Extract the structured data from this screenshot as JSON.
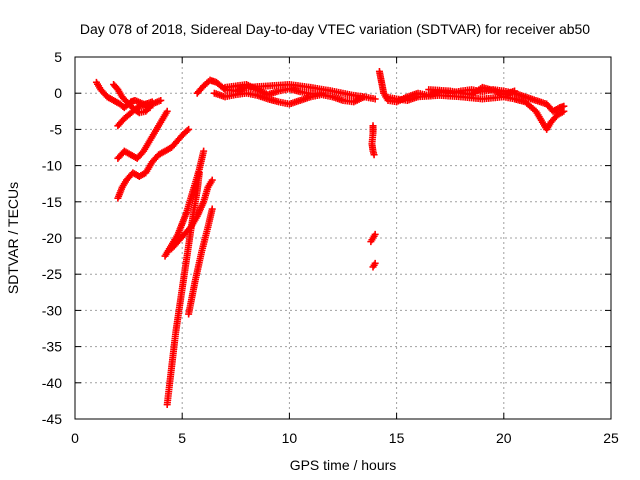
{
  "chart_data": {
    "type": "scatter",
    "title": "Day 078 of 2018, Sidereal Day-to-day VTEC variation (SDTVAR) for receiver ab50",
    "xlabel": "GPS time / hours",
    "ylabel": "SDTVAR / TECUs",
    "xlim": [
      0,
      25
    ],
    "ylim": [
      -45,
      5
    ],
    "xticks": [
      0,
      5,
      10,
      15,
      20,
      25
    ],
    "yticks": [
      5,
      0,
      -5,
      -10,
      -15,
      -20,
      -25,
      -30,
      -35,
      -40,
      -45
    ],
    "xtick_labels": [
      "0",
      "5",
      "10",
      "15",
      "20",
      "25"
    ],
    "ytick_labels": [
      "5",
      "0",
      "-5",
      "-10",
      "-15",
      "-20",
      "-25",
      "-30",
      "-35",
      "-40",
      "-45"
    ],
    "grid": true,
    "marker": "plus",
    "color": "#ff0000",
    "tracks": [
      [
        [
          1.0,
          1.5
        ],
        [
          1.2,
          0.5
        ],
        [
          1.5,
          -0.5
        ],
        [
          1.8,
          -1.0
        ],
        [
          2.1,
          -1.5
        ],
        [
          2.3,
          -2.0
        ],
        [
          2.6,
          -1.2
        ],
        [
          2.8,
          -1.0
        ],
        [
          3.2,
          -1.5
        ],
        [
          3.5,
          -2.0
        ]
      ],
      [
        [
          1.8,
          1.2
        ],
        [
          2.0,
          0.5
        ],
        [
          2.2,
          -0.5
        ],
        [
          2.5,
          -1.5
        ],
        [
          2.8,
          -2.3
        ],
        [
          3.0,
          -2.7
        ],
        [
          3.3,
          -2.5
        ],
        [
          3.6,
          -1.5
        ],
        [
          4.0,
          -1.0
        ]
      ],
      [
        [
          2.0,
          -4.5
        ],
        [
          2.3,
          -3.5
        ],
        [
          2.7,
          -2.5
        ],
        [
          3.0,
          -1.8
        ],
        [
          3.3,
          -1.5
        ],
        [
          3.6,
          -1.2
        ]
      ],
      [
        [
          2.0,
          -9.0
        ],
        [
          2.3,
          -8.0
        ],
        [
          2.6,
          -8.5
        ],
        [
          2.9,
          -9.0
        ],
        [
          3.2,
          -8.0
        ],
        [
          3.5,
          -6.5
        ],
        [
          3.8,
          -5.0
        ],
        [
          4.1,
          -3.5
        ],
        [
          4.3,
          -2.5
        ]
      ],
      [
        [
          2.0,
          -14.5
        ],
        [
          2.2,
          -13.0
        ],
        [
          2.4,
          -12.0
        ],
        [
          2.7,
          -11.0
        ],
        [
          3.0,
          -11.5
        ],
        [
          3.3,
          -11.0
        ],
        [
          3.6,
          -9.5
        ],
        [
          3.9,
          -8.5
        ],
        [
          4.2,
          -8.0
        ],
        [
          4.5,
          -7.5
        ],
        [
          4.8,
          -6.5
        ],
        [
          5.1,
          -5.5
        ],
        [
          5.3,
          -5.0
        ]
      ],
      [
        [
          4.2,
          -22.5
        ],
        [
          4.4,
          -21.5
        ],
        [
          4.6,
          -20.5
        ],
        [
          4.8,
          -19.5
        ],
        [
          5.0,
          -18.0
        ],
        [
          5.2,
          -16.5
        ],
        [
          5.4,
          -14.5
        ],
        [
          5.6,
          -12.5
        ],
        [
          5.8,
          -10.5
        ],
        [
          6.0,
          -8.0
        ]
      ],
      [
        [
          4.5,
          -21.5
        ],
        [
          4.8,
          -20.5
        ],
        [
          5.1,
          -19.5
        ],
        [
          5.4,
          -18.5
        ],
        [
          5.7,
          -17.0
        ],
        [
          6.0,
          -15.0
        ],
        [
          6.2,
          -13.0
        ],
        [
          6.4,
          -12.0
        ]
      ],
      [
        [
          4.3,
          -43.0
        ],
        [
          4.5,
          -38.0
        ],
        [
          4.7,
          -33.0
        ],
        [
          4.9,
          -29.0
        ],
        [
          5.1,
          -25.0
        ],
        [
          5.3,
          -21.0
        ],
        [
          5.5,
          -17.0
        ],
        [
          5.7,
          -13.5
        ],
        [
          5.8,
          -11.0
        ]
      ],
      [
        [
          5.3,
          -30.5
        ],
        [
          5.6,
          -26.0
        ],
        [
          5.9,
          -22.0
        ],
        [
          6.2,
          -18.5
        ],
        [
          6.4,
          -16.0
        ]
      ],
      [
        [
          5.7,
          0.0
        ],
        [
          6.0,
          1.0
        ],
        [
          6.3,
          1.8
        ],
        [
          6.6,
          1.5
        ],
        [
          7.0,
          0.5
        ],
        [
          7.5,
          0.3
        ],
        [
          8.0,
          0.8
        ],
        [
          9.0,
          1.0
        ],
        [
          10.0,
          1.2
        ],
        [
          11.0,
          0.8
        ],
        [
          12.0,
          0.3
        ],
        [
          12.5,
          0.0
        ],
        [
          13.0,
          -0.3
        ],
        [
          13.5,
          -0.5
        ],
        [
          14.0,
          -0.8
        ]
      ],
      [
        [
          6.5,
          0.0
        ],
        [
          7.0,
          -0.5
        ],
        [
          7.5,
          -0.2
        ],
        [
          8.0,
          0.0
        ],
        [
          8.5,
          -0.3
        ],
        [
          9.0,
          -0.8
        ],
        [
          9.5,
          -1.2
        ],
        [
          10.0,
          -1.5
        ],
        [
          10.5,
          -1.0
        ],
        [
          11.0,
          -0.5
        ],
        [
          11.5,
          -0.2
        ],
        [
          12.0,
          -0.5
        ],
        [
          12.5,
          -1.0
        ],
        [
          13.0,
          -1.2
        ],
        [
          13.5,
          -0.5
        ]
      ],
      [
        [
          7.0,
          0.8
        ],
        [
          7.5,
          1.0
        ],
        [
          8.0,
          1.2
        ],
        [
          8.5,
          0.5
        ],
        [
          9.0,
          -0.2
        ],
        [
          9.5,
          0.3
        ],
        [
          10.0,
          0.6
        ],
        [
          10.5,
          0.2
        ],
        [
          11.0,
          -0.1
        ],
        [
          11.5,
          0.0
        ]
      ],
      [
        [
          13.9,
          -4.5
        ],
        [
          13.9,
          -5.5
        ],
        [
          13.85,
          -7.0
        ],
        [
          13.9,
          -8.0
        ],
        [
          13.95,
          -8.5
        ]
      ],
      [
        [
          13.8,
          -20.5
        ],
        [
          13.9,
          -20.0
        ],
        [
          14.0,
          -19.5
        ]
      ],
      [
        [
          13.9,
          -24.0
        ],
        [
          14.0,
          -23.5
        ]
      ],
      [
        [
          14.2,
          3.0
        ],
        [
          14.3,
          1.5
        ],
        [
          14.4,
          0.0
        ],
        [
          14.6,
          -1.0
        ],
        [
          15.0,
          -1.2
        ],
        [
          15.5,
          -0.5
        ],
        [
          16.0,
          0.0
        ],
        [
          16.5,
          -0.3
        ],
        [
          17.0,
          0.2
        ],
        [
          17.5,
          0.0
        ],
        [
          18.0,
          0.3
        ],
        [
          18.5,
          0.5
        ],
        [
          19.0,
          0.2
        ],
        [
          19.5,
          0.5
        ],
        [
          20.0,
          0.3
        ],
        [
          20.5,
          0.0
        ],
        [
          21.0,
          -0.5
        ],
        [
          21.5,
          -1.0
        ],
        [
          22.0,
          -1.5
        ],
        [
          22.3,
          -2.5
        ],
        [
          22.6,
          -2.0
        ],
        [
          22.8,
          -1.8
        ]
      ],
      [
        [
          14.5,
          -0.5
        ],
        [
          15.0,
          -0.8
        ],
        [
          15.5,
          -1.0
        ],
        [
          16.0,
          -0.5
        ],
        [
          17.0,
          -0.3
        ],
        [
          18.0,
          -0.5
        ],
        [
          19.0,
          -0.8
        ],
        [
          20.0,
          -0.5
        ],
        [
          20.5,
          -0.8
        ],
        [
          21.0,
          -1.2
        ],
        [
          21.5,
          -2.5
        ],
        [
          21.8,
          -4.0
        ],
        [
          22.0,
          -5.0
        ],
        [
          22.2,
          -4.0
        ],
        [
          22.5,
          -3.0
        ],
        [
          22.8,
          -2.5
        ]
      ],
      [
        [
          16.5,
          0.5
        ],
        [
          17.5,
          0.3
        ],
        [
          18.5,
          -0.2
        ],
        [
          19.0,
          0.8
        ],
        [
          19.5,
          0.4
        ],
        [
          20.0,
          -0.2
        ],
        [
          20.5,
          0.3
        ]
      ]
    ]
  }
}
